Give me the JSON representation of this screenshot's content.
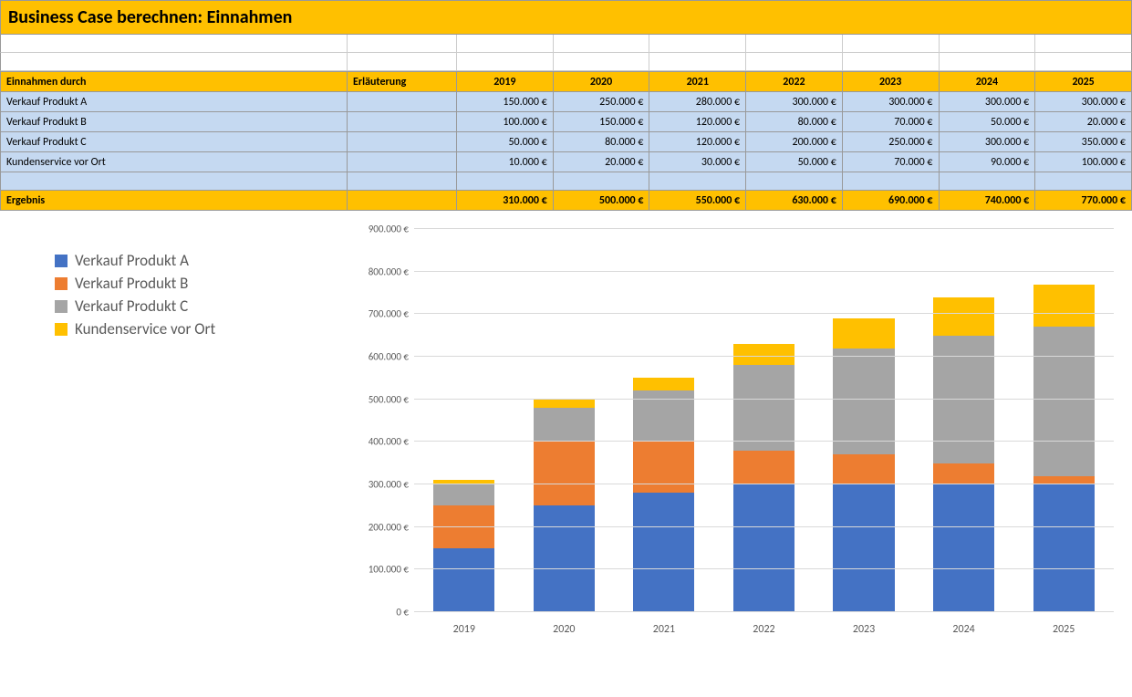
{
  "title": "Business Case berechnen: Einnahmen",
  "table": {
    "header_label": "Einnahmen durch",
    "header_expl": "Erläuterung",
    "years": [
      "2019",
      "2020",
      "2021",
      "2022",
      "2023",
      "2024",
      "2025"
    ],
    "rows": [
      {
        "label": "Verkauf Produkt A",
        "cells": [
          "150.000 €",
          "250.000 €",
          "280.000 €",
          "300.000 €",
          "300.000 €",
          "300.000 €",
          "300.000 €"
        ]
      },
      {
        "label": "Verkauf Produkt B",
        "cells": [
          "100.000 €",
          "150.000 €",
          "120.000 €",
          "80.000 €",
          "70.000 €",
          "50.000 €",
          "20.000 €"
        ]
      },
      {
        "label": "Verkauf Produkt C",
        "cells": [
          "50.000 €",
          "80.000 €",
          "120.000 €",
          "200.000 €",
          "250.000 €",
          "300.000 €",
          "350.000 €"
        ]
      },
      {
        "label": "Kundenservice vor Ort",
        "cells": [
          "10.000 €",
          "20.000 €",
          "30.000 €",
          "50.000 €",
          "70.000 €",
          "90.000 €",
          "100.000 €"
        ]
      }
    ],
    "totals_label": "Ergebnis",
    "totals": [
      "310.000 €",
      "500.000 €",
      "550.000 €",
      "630.000 €",
      "690.000 €",
      "740.000 €",
      "770.000 €"
    ],
    "header_bg": "#ffc000",
    "body_bg": "#c5d9f1"
  },
  "chart": {
    "type": "stacked-bar",
    "categories": [
      "2019",
      "2020",
      "2021",
      "2022",
      "2023",
      "2024",
      "2025"
    ],
    "series": [
      {
        "name": "Verkauf Produkt A",
        "color": "#4472c4",
        "values": [
          150000,
          250000,
          280000,
          300000,
          300000,
          300000,
          300000
        ]
      },
      {
        "name": "Verkauf Produkt B",
        "color": "#ed7d31",
        "values": [
          100000,
          150000,
          120000,
          80000,
          70000,
          50000,
          20000
        ]
      },
      {
        "name": "Verkauf Produkt C",
        "color": "#a5a5a5",
        "values": [
          50000,
          80000,
          120000,
          200000,
          250000,
          300000,
          350000
        ]
      },
      {
        "name": "Kundenservice vor Ort",
        "color": "#ffc000",
        "values": [
          10000,
          20000,
          30000,
          50000,
          70000,
          90000,
          100000
        ]
      }
    ],
    "ylim": [
      0,
      900000
    ],
    "ytick_step": 100000,
    "ytick_labels": [
      "0 €",
      "100.000 €",
      "200.000 €",
      "300.000 €",
      "400.000 €",
      "500.000 €",
      "600.000 €",
      "700.000 €",
      "800.000 €",
      "900.000 €"
    ],
    "grid_color": "#d9d9d9",
    "label_color": "#595959",
    "legend_fontsize": 17,
    "axis_fontsize": 11,
    "background_color": "#ffffff",
    "bar_width": 0.7
  }
}
